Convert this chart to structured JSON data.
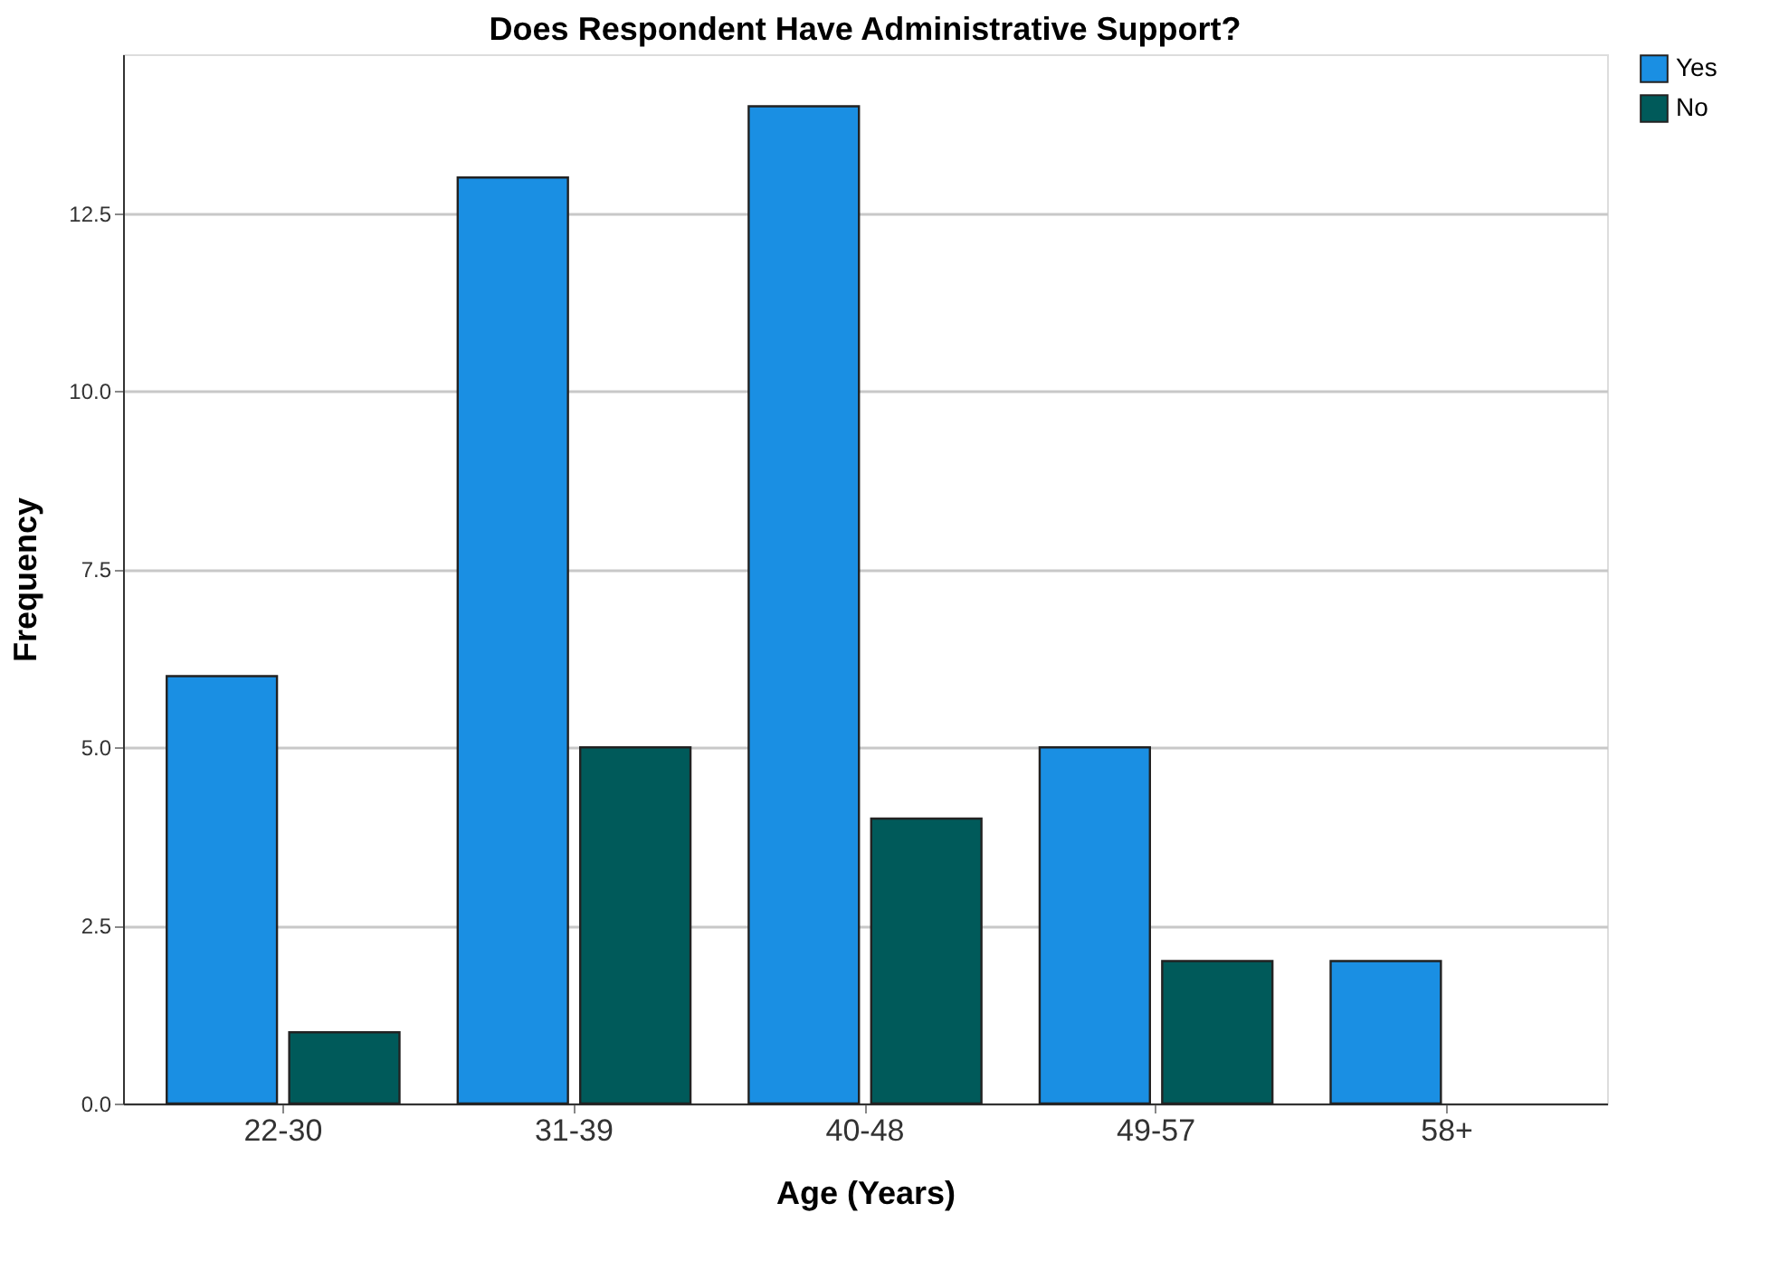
{
  "chart_data": {
    "type": "bar",
    "title": "Does Respondent Have Administrative Support?",
    "xlabel": "Age (Years)",
    "ylabel": "Frequency",
    "categories": [
      "22-30",
      "31-39",
      "40-48",
      "49-57",
      "58+"
    ],
    "series": [
      {
        "name": "Yes",
        "color": "#1a8fe3",
        "values": [
          6,
          13,
          14,
          5,
          2
        ]
      },
      {
        "name": "No",
        "color": "#005a5a",
        "values": [
          1,
          5,
          4,
          2,
          null
        ]
      }
    ],
    "ylim": [
      0,
      14.73
    ],
    "yticks": [
      {
        "value": 0,
        "label": "0.0"
      },
      {
        "value": 2.5,
        "label": "2.5"
      },
      {
        "value": 5,
        "label": "5.0"
      },
      {
        "value": 7.5,
        "label": "7.5"
      },
      {
        "value": 10,
        "label": "10.0"
      },
      {
        "value": 12.5,
        "label": "12.5"
      }
    ],
    "grid": "y",
    "legend": "top right"
  }
}
